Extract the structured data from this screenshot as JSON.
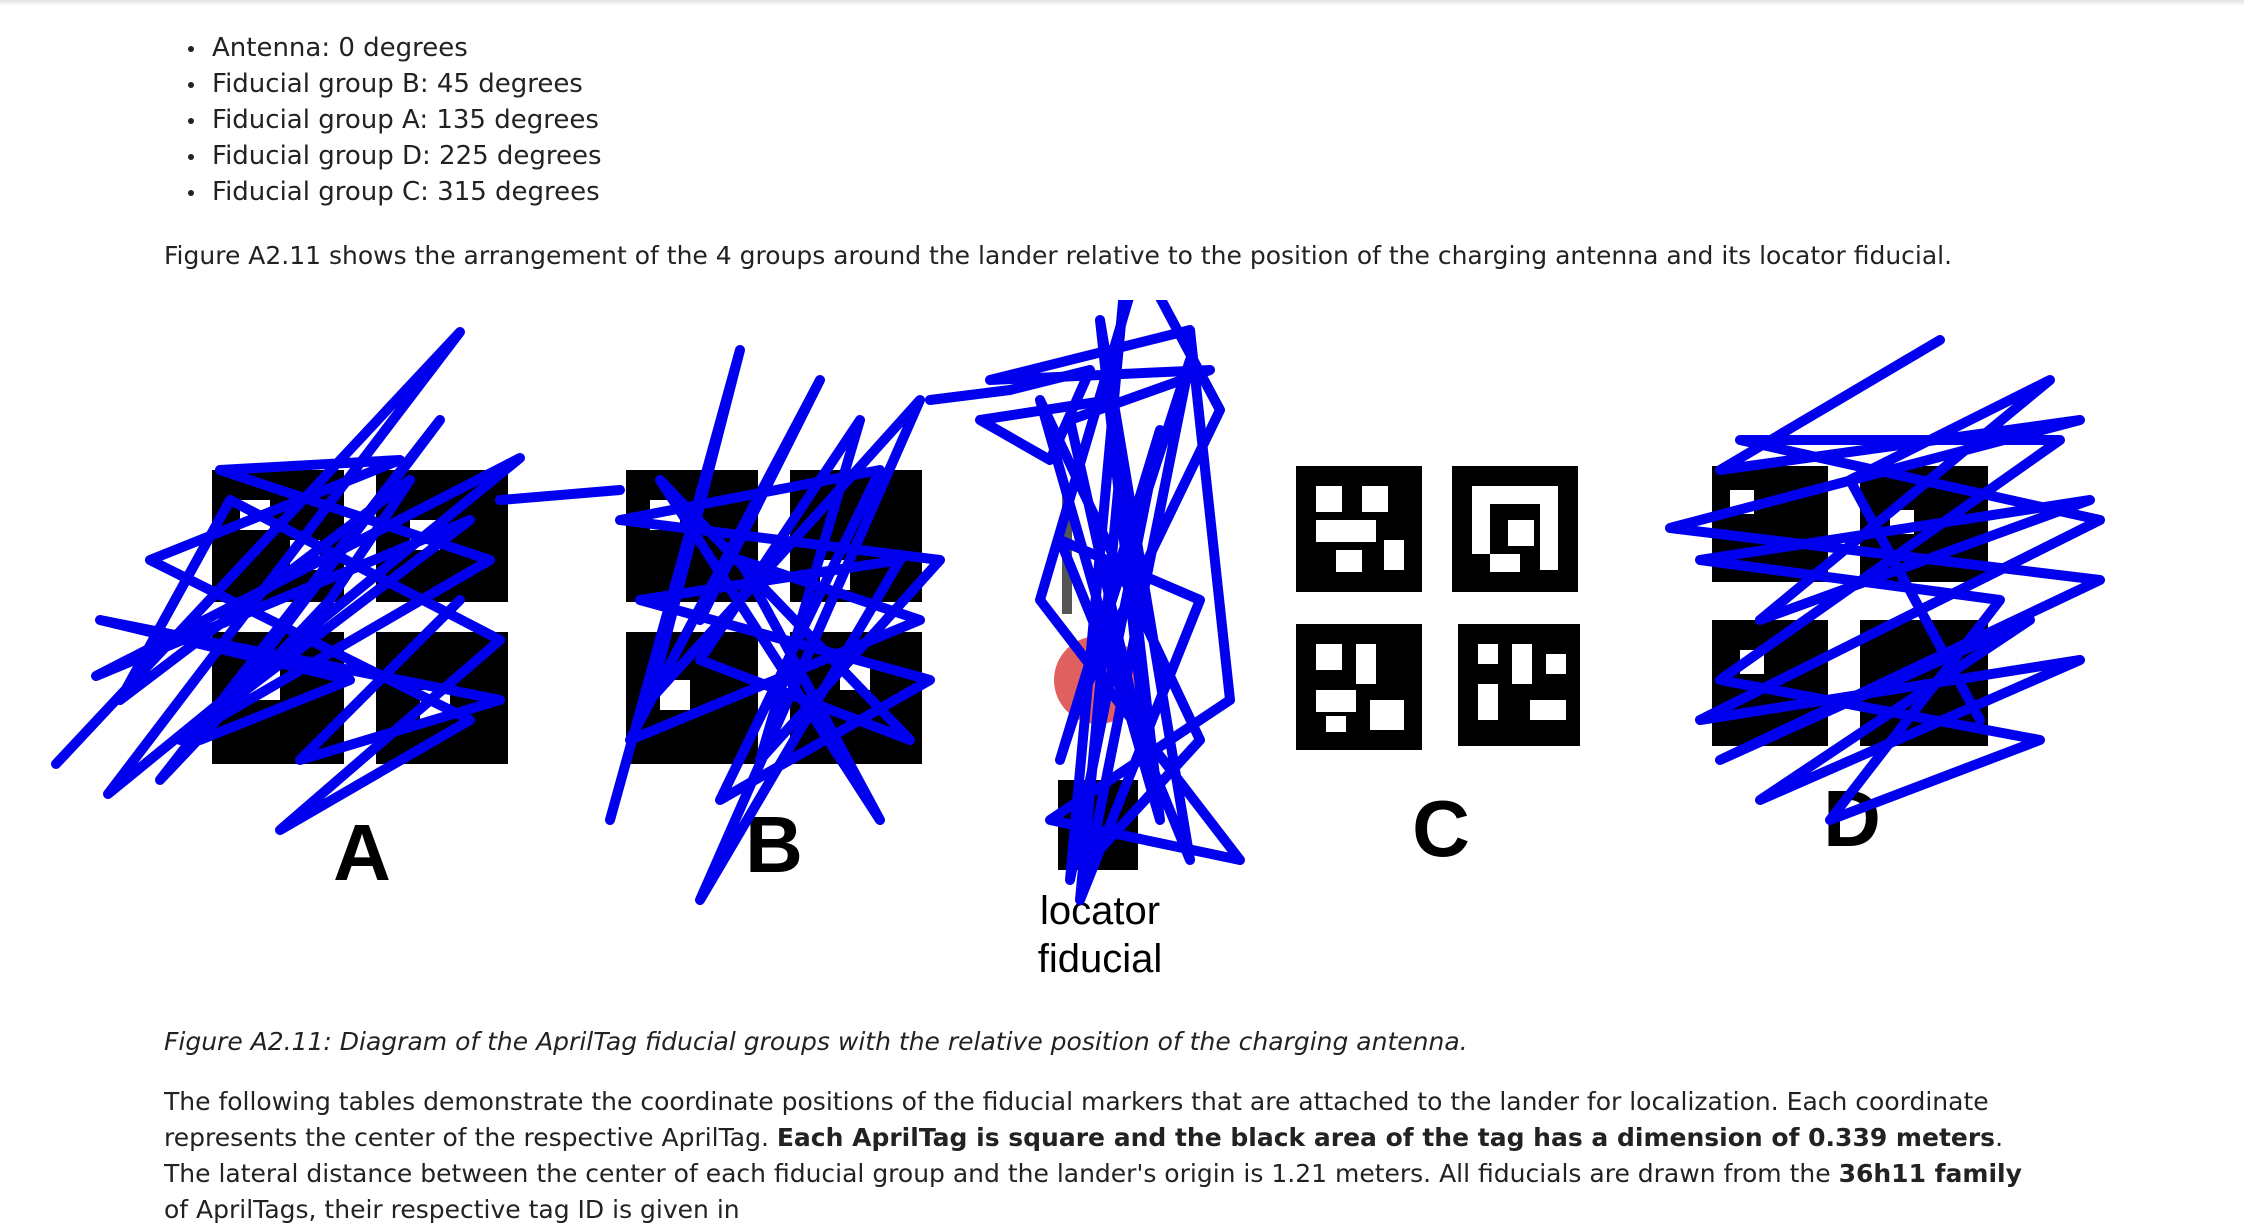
{
  "angles": [
    "Antenna: 0 degrees",
    "Fiducial group B: 45 degrees",
    "Fiducial group A: 135 degrees",
    "Fiducial group D: 225 degrees",
    "Fiducial group C: 315 degrees"
  ],
  "intro": "Figure A2.11 shows the arrangement of the 4 groups around the lander relative to the position of the charging antenna and its locator fiducial.",
  "figure": {
    "group_labels": {
      "a": "A",
      "b": "B",
      "c": "C",
      "d": "D"
    },
    "locator_line1": "locator",
    "locator_line2": "fiducial",
    "colors": {
      "scribble": "#0000ee",
      "antenna": "#e06060",
      "tag": "#000000"
    }
  },
  "caption": "Figure A2.11: Diagram of the AprilTag fiducial groups with the relative position of the charging antenna.",
  "para": {
    "t1": "The following tables demonstrate the coordinate positions of the fiducial markers that are attached to the lander for localization. Each coordinate represents the center of the respective AprilTag. ",
    "b1": "Each AprilTag is square and the black area of the tag has a dimension of 0.339 meters",
    "t2": ". The lateral distance between the center of each fiducial group and the lander's origin is 1.21 meters. All fiducials are drawn from the ",
    "b2": "36h11 family",
    "t3": " of AprilTags, their respective tag ID is given in"
  }
}
